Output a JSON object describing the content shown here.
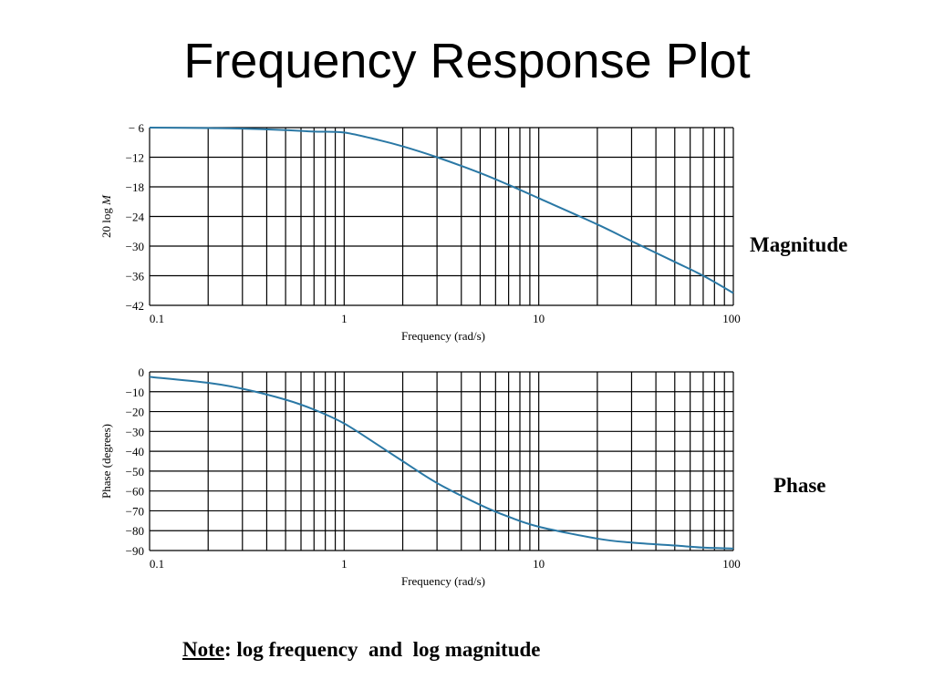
{
  "title": "Frequency Response Plot",
  "labels": {
    "magnitude": "Magnitude",
    "phase": "Phase"
  },
  "note": {
    "prefix": "Note",
    "rest": ": log frequency  and  log magnitude"
  },
  "colors": {
    "curve": "#2a78a5",
    "grid": "#000000"
  },
  "chart_data": [
    {
      "type": "line",
      "xscale": "log",
      "xlim": [
        0.1,
        100
      ],
      "ylim": [
        -42,
        -6
      ],
      "xlabel": "Frequency (rad/s)",
      "ylabel": "20 log M",
      "xticks": [
        "0.1",
        "1",
        "10",
        "100"
      ],
      "yticks": [
        "− 6",
        "−12",
        "−18",
        "−24",
        "−30",
        "−36",
        "−42"
      ],
      "ytick_values": [
        -6,
        -12,
        -18,
        -24,
        -30,
        -36,
        -42
      ],
      "grid": true,
      "series": [
        {
          "x": [
            0.1,
            0.2,
            0.3,
            0.5,
            0.7,
            1,
            1.5,
            2,
            3,
            5,
            7,
            10,
            20,
            30,
            50,
            70,
            100
          ],
          "values": [
            -6.0,
            -6.1,
            -6.2,
            -6.5,
            -6.8,
            -7.0,
            -8.5,
            -9.8,
            -12.0,
            -15.2,
            -17.6,
            -20.3,
            -25.6,
            -29.0,
            -33.2,
            -36.0,
            -39.5
          ]
        }
      ]
    },
    {
      "type": "line",
      "xscale": "log",
      "xlim": [
        0.1,
        100
      ],
      "ylim": [
        -90,
        0
      ],
      "xlabel": "Frequency (rad/s)",
      "ylabel": "Phase (degrees)",
      "xticks": [
        "0.1",
        "1",
        "10",
        "100"
      ],
      "yticks": [
        "0",
        "−10",
        "−20",
        "−30",
        "−40",
        "−50",
        "−60",
        "−70",
        "−80",
        "−90"
      ],
      "ytick_values": [
        0,
        -10,
        -20,
        -30,
        -40,
        -50,
        -60,
        -70,
        -80,
        -90
      ],
      "grid": true,
      "series": [
        {
          "x": [
            0.1,
            0.2,
            0.3,
            0.5,
            0.7,
            1,
            1.5,
            2,
            3,
            5,
            7,
            10,
            20,
            30,
            50,
            70,
            100
          ],
          "values": [
            -2.5,
            -5.5,
            -8.5,
            -14.0,
            -19.0,
            -26.0,
            -37.0,
            -45.0,
            -56.0,
            -67.0,
            -73.0,
            -78.0,
            -84.0,
            -86.0,
            -87.5,
            -88.5,
            -89.0
          ]
        }
      ]
    }
  ]
}
